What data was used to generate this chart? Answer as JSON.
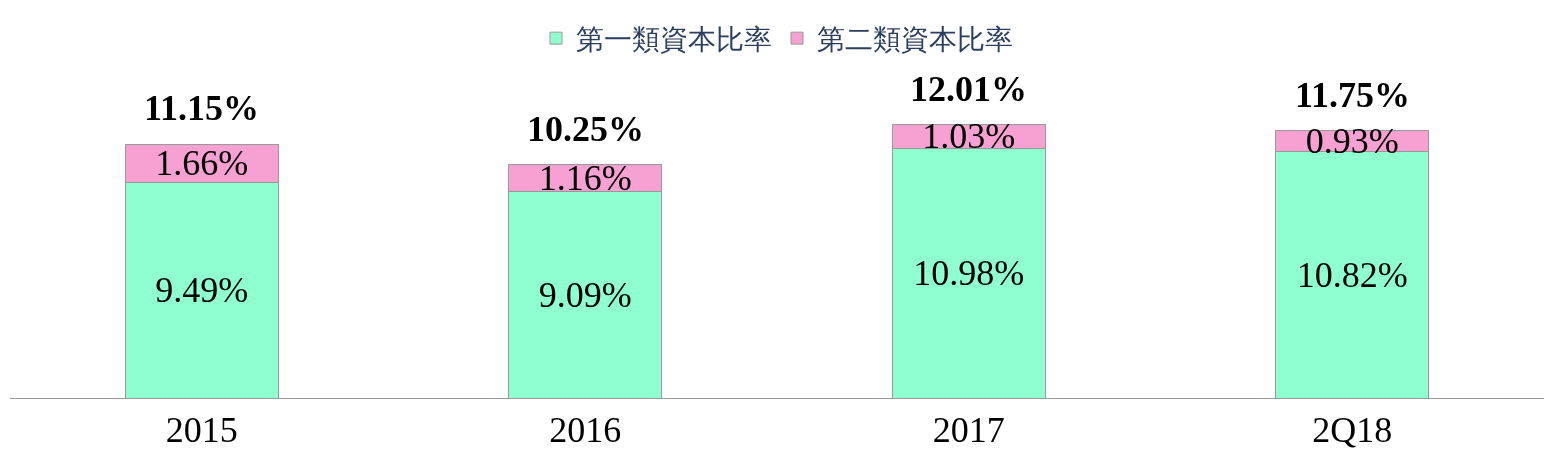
{
  "chart_data": {
    "type": "bar",
    "stacked": true,
    "categories": [
      "2015",
      "2016",
      "2017",
      "2Q18"
    ],
    "series": [
      {
        "name": "第一類資本比率",
        "color": "#8fffcf",
        "values": [
          9.49,
          9.09,
          10.98,
          10.82
        ],
        "value_labels": [
          "9.49%",
          "9.09%",
          "10.98%",
          "10.82%"
        ]
      },
      {
        "name": "第二類資本比率",
        "color": "#f7a0d2",
        "values": [
          1.66,
          1.16,
          1.03,
          0.93
        ],
        "value_labels": [
          "1.66%",
          "1.16%",
          "1.03%",
          "0.93%"
        ]
      }
    ],
    "totals": [
      "11.15%",
      "10.25%",
      "12.01%",
      "11.75%"
    ],
    "legend": "top"
  }
}
